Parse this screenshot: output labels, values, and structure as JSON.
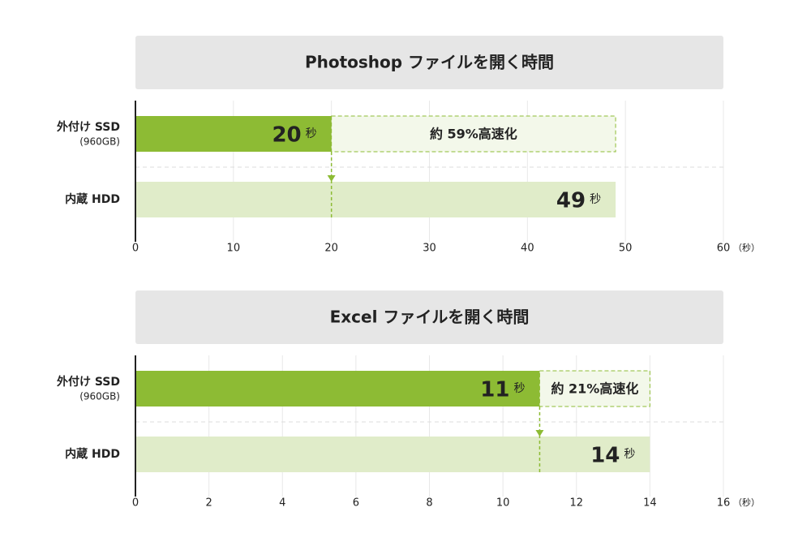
{
  "chart_data": [
    {
      "type": "bar",
      "orientation": "horizontal",
      "title": "Photoshop ファイルを開く時間",
      "categories": [
        "外付け SSD",
        "内蔵 HDD"
      ],
      "category_sublabels": [
        "(960GB)",
        null
      ],
      "values": [
        20,
        49
      ],
      "colors": [
        "#8dbb34",
        "#e0ecc9"
      ],
      "value_unit": "秒",
      "annotation": "約 59%高速化",
      "xlim": [
        0,
        60
      ],
      "xticks": [
        0,
        10,
        20,
        30,
        40,
        50,
        60
      ],
      "xlabel": "（秒）",
      "grid": true
    },
    {
      "type": "bar",
      "orientation": "horizontal",
      "title": "Excel ファイルを開く時間",
      "categories": [
        "外付け SSD",
        "内蔵 HDD"
      ],
      "category_sublabels": [
        "(960GB)",
        null
      ],
      "values": [
        11,
        14
      ],
      "colors": [
        "#8dbb34",
        "#e0ecc9"
      ],
      "value_unit": "秒",
      "annotation": "約 21%高速化",
      "xlim": [
        0,
        16
      ],
      "xticks": [
        0,
        2,
        4,
        6,
        8,
        10,
        12,
        14,
        16
      ],
      "xlabel": "（秒）",
      "grid": true
    }
  ]
}
